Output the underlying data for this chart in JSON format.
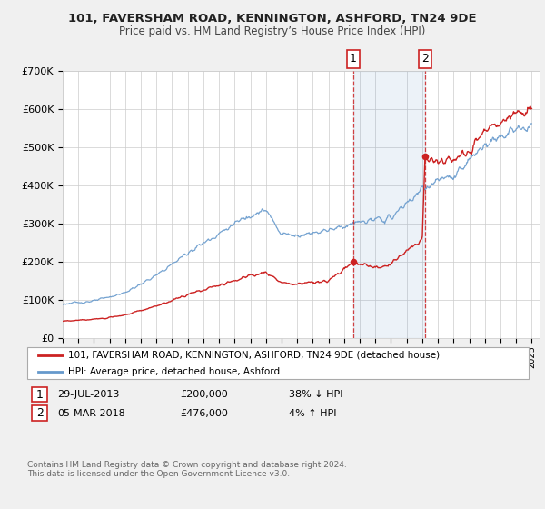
{
  "title": "101, FAVERSHAM ROAD, KENNINGTON, ASHFORD, TN24 9DE",
  "subtitle": "Price paid vs. HM Land Registry’s House Price Index (HPI)",
  "ylim": [
    0,
    700000
  ],
  "yticks": [
    0,
    100000,
    200000,
    300000,
    400000,
    500000,
    600000,
    700000
  ],
  "ytick_labels": [
    "£0",
    "£100K",
    "£200K",
    "£300K",
    "£400K",
    "£500K",
    "£600K",
    "£700K"
  ],
  "hpi_color": "#6699cc",
  "price_color": "#cc2222",
  "sale1_date": 2013.57,
  "sale1_price": 200000,
  "sale2_date": 2018.17,
  "sale2_price": 476000,
  "legend_label1": "101, FAVERSHAM ROAD, KENNINGTON, ASHFORD, TN24 9DE (detached house)",
  "legend_label2": "HPI: Average price, detached house, Ashford",
  "annotation1_date": "29-JUL-2013",
  "annotation1_price": "£200,000",
  "annotation1_hpi": "38% ↓ HPI",
  "annotation2_date": "05-MAR-2018",
  "annotation2_price": "£476,000",
  "annotation2_hpi": "4% ↑ HPI",
  "footer": "Contains HM Land Registry data © Crown copyright and database right 2024.\nThis data is licensed under the Open Government Licence v3.0.",
  "background_color": "#f0f0f0",
  "plot_bg_color": "#ffffff",
  "grid_color": "#cccccc"
}
